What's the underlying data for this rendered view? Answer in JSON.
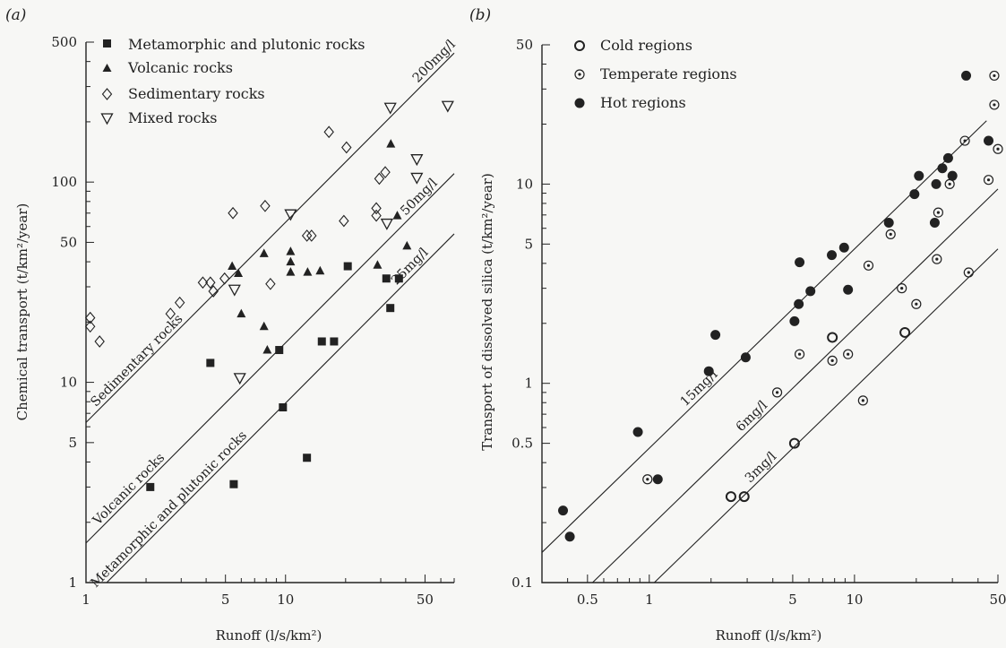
{
  "colors": {
    "ink": "#222222",
    "background": "#f7f7f5"
  },
  "chart_data": [
    {
      "panel": "(a)",
      "type": "scatter",
      "xlabel": "Runoff (l/s/km²)",
      "ylabel": "Chemical transport (t/km²/year)",
      "xscale": "log",
      "yscale": "log",
      "xlim": [
        1,
        70
      ],
      "ylim": [
        1,
        500
      ],
      "xticks": [
        "1",
        "5",
        "10",
        "50"
      ],
      "yticks": [
        "1",
        "5",
        "10",
        "50",
        "100",
        "500"
      ],
      "legend_position": "top-left",
      "series": [
        {
          "name": "Metamorphic and plutonic rocks",
          "marker": "filled-square",
          "points": [
            [
              2.1,
              3.0
            ],
            [
              4.2,
              12.5
            ],
            [
              5.5,
              3.1
            ],
            [
              9.3,
              14.5
            ],
            [
              9.7,
              7.5
            ],
            [
              12.8,
              4.2
            ],
            [
              15.2,
              16.0
            ],
            [
              17.5,
              16.0
            ],
            [
              20.5,
              38
            ],
            [
              32.0,
              33
            ],
            [
              33.5,
              23.5
            ],
            [
              37.0,
              33
            ]
          ]
        },
        {
          "name": "Volcanic rocks",
          "marker": "filled-triangle",
          "points": [
            [
              5.4,
              38
            ],
            [
              5.8,
              35
            ],
            [
              6.0,
              22.0
            ],
            [
              7.8,
              44
            ],
            [
              7.8,
              19.0
            ],
            [
              8.1,
              14.5
            ],
            [
              10.6,
              45
            ],
            [
              10.6,
              40
            ],
            [
              10.6,
              35.5
            ],
            [
              12.9,
              35.5
            ],
            [
              14.9,
              36
            ],
            [
              28.9,
              38.5
            ],
            [
              33.7,
              155
            ],
            [
              36.3,
              68
            ],
            [
              40.6,
              48
            ]
          ]
        },
        {
          "name": "Sedimentary rocks",
          "marker": "open-diamond",
          "points": [
            [
              1.05,
              21.0
            ],
            [
              1.05,
              19.0
            ],
            [
              1.17,
              16.0
            ],
            [
              2.65,
              22.0
            ],
            [
              2.95,
              25.0
            ],
            [
              3.85,
              31.5
            ],
            [
              4.2,
              31.5
            ],
            [
              4.35,
              28.5
            ],
            [
              4.95,
              33.0
            ],
            [
              5.45,
              70
            ],
            [
              7.9,
              76
            ],
            [
              8.4,
              31.0
            ],
            [
              12.8,
              54
            ],
            [
              13.5,
              54
            ],
            [
              16.5,
              178
            ],
            [
              19.6,
              64
            ],
            [
              20.2,
              149
            ],
            [
              28.5,
              74
            ],
            [
              29.5,
              104
            ],
            [
              28.5,
              68
            ],
            [
              31.6,
              112
            ]
          ]
        },
        {
          "name": "Mixed rocks",
          "marker": "open-triangle-down",
          "points": [
            [
              5.55,
              29.0
            ],
            [
              5.9,
              10.5
            ],
            [
              10.6,
              69
            ],
            [
              32.2,
              62
            ],
            [
              33.5,
              235
            ],
            [
              45.5,
              105
            ],
            [
              45.5,
              130
            ],
            [
              65.0,
              240
            ]
          ]
        }
      ],
      "reference_lines": [
        {
          "label": "200mg/l",
          "concentration": 200
        },
        {
          "label": "50mg/l",
          "concentration": 50
        },
        {
          "label": "25mg/l",
          "concentration": 25
        }
      ],
      "annotations": [
        "Sedimentary rocks",
        "Volcanic rocks",
        "Metamorphic and plutonic rocks"
      ]
    },
    {
      "panel": "(b)",
      "type": "scatter",
      "xlabel": "Runoff (l/s/km²)",
      "ylabel": "Transport of dissolved silica (t/km²/year)",
      "xscale": "log",
      "yscale": "log",
      "xlim": [
        0.3,
        50
      ],
      "ylim": [
        0.1,
        50
      ],
      "xticks": [
        "0.5",
        "1",
        "5",
        "10",
        "50"
      ],
      "yticks": [
        "0.1",
        "0.5",
        "1",
        "5",
        "10",
        "50"
      ],
      "legend_position": "top-left",
      "series": [
        {
          "name": "Cold regions",
          "marker": "open-circle",
          "points": [
            [
              2.5,
              0.27
            ],
            [
              2.9,
              0.27
            ],
            [
              5.1,
              0.5
            ],
            [
              7.8,
              1.7
            ],
            [
              17.6,
              1.8
            ]
          ]
        },
        {
          "name": "Temperate regions",
          "marker": "dotted-circle",
          "points": [
            [
              0.98,
              0.33
            ],
            [
              4.2,
              0.9
            ],
            [
              5.4,
              1.4
            ],
            [
              7.8,
              1.3
            ],
            [
              9.3,
              1.4
            ],
            [
              11.0,
              0.82
            ],
            [
              11.7,
              3.9
            ],
            [
              15.0,
              5.6
            ],
            [
              17.0,
              3.0
            ],
            [
              20.0,
              2.5
            ],
            [
              25.2,
              4.2
            ],
            [
              25.6,
              7.2
            ],
            [
              29.1,
              10.0
            ],
            [
              34.5,
              16.5
            ],
            [
              45.0,
              10.5
            ],
            [
              48.0,
              25.0
            ],
            [
              48.0,
              35.0
            ],
            [
              50.0,
              15.0
            ],
            [
              36.0,
              3.6
            ]
          ]
        },
        {
          "name": "Hot regions",
          "marker": "filled-circle",
          "points": [
            [
              0.38,
              0.23
            ],
            [
              0.41,
              0.17
            ],
            [
              0.88,
              0.57
            ],
            [
              1.1,
              0.33
            ],
            [
              1.95,
              1.15
            ],
            [
              2.1,
              1.75
            ],
            [
              2.95,
              1.35
            ],
            [
              5.1,
              2.05
            ],
            [
              5.35,
              2.5
            ],
            [
              5.4,
              4.05
            ],
            [
              6.1,
              2.9
            ],
            [
              7.75,
              4.4
            ],
            [
              8.9,
              4.8
            ],
            [
              9.3,
              2.95
            ],
            [
              14.7,
              6.4
            ],
            [
              19.6,
              8.9
            ],
            [
              20.6,
              11.0
            ],
            [
              24.6,
              6.4
            ],
            [
              25.0,
              10.0
            ],
            [
              26.8,
              12.0
            ],
            [
              28.6,
              13.5
            ],
            [
              30.0,
              11.0
            ],
            [
              35.0,
              35.0
            ],
            [
              45.0,
              16.5
            ]
          ]
        }
      ],
      "reference_lines": [
        {
          "label": "15mg/l",
          "concentration": 15
        },
        {
          "label": "6mg/l",
          "concentration": 6
        },
        {
          "label": "3mg/l",
          "concentration": 3
        }
      ]
    }
  ]
}
